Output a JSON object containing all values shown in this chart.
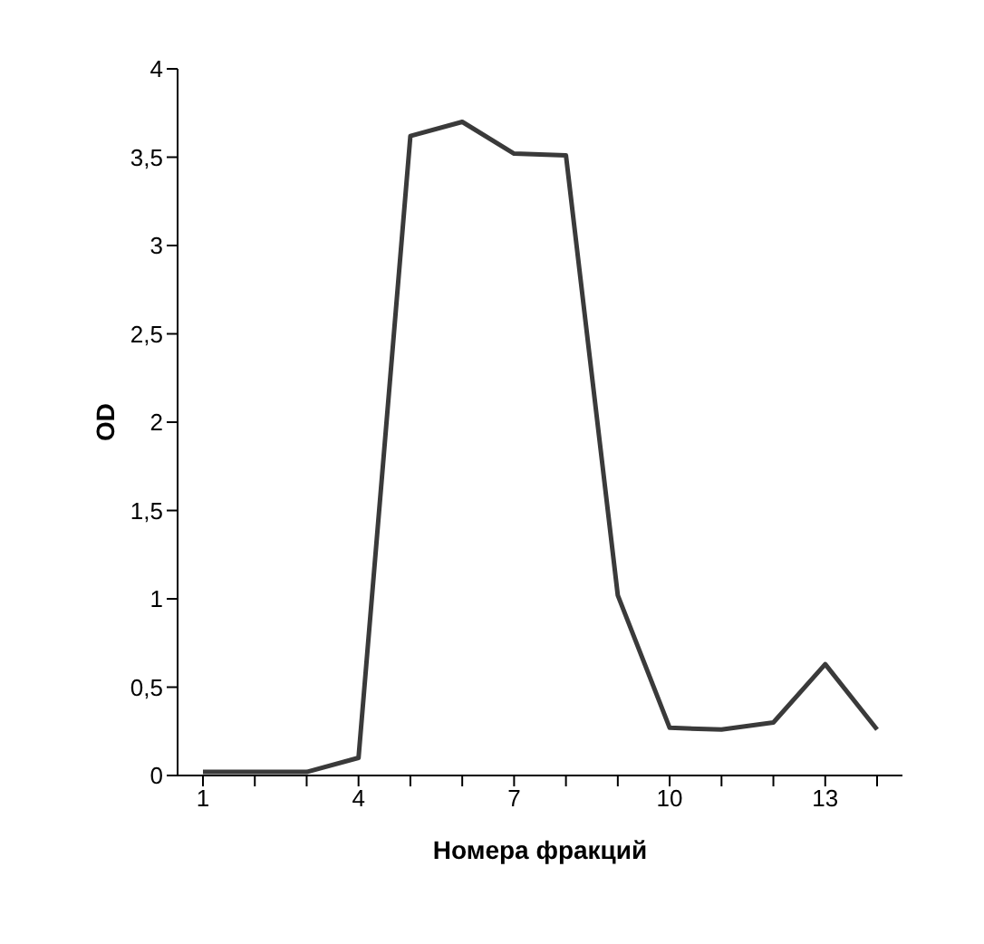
{
  "chart_data": {
    "type": "line",
    "xlabel": "Номера фракций",
    "ylabel": "OD",
    "categories": [
      "1",
      null,
      null,
      "4",
      null,
      null,
      "7",
      null,
      null,
      "10",
      null,
      null,
      "13",
      null
    ],
    "series": [
      {
        "color": "#3a3a3a",
        "values": [
          0.02,
          0.02,
          0.02,
          0.1,
          3.62,
          3.7,
          3.52,
          3.51,
          1.02,
          0.27,
          0.26,
          0.3,
          0.63,
          0.26
        ]
      }
    ],
    "ylim": [
      0,
      4
    ],
    "yticks": [
      0,
      {
        "value": 0.5,
        "label": "0,5"
      },
      1,
      {
        "value": 1.5,
        "label": "1,5"
      },
      2,
      {
        "value": 2.5,
        "label": "2,5"
      },
      3,
      {
        "value": 3.5,
        "label": "3,5"
      },
      4
    ],
    "grid": false,
    "marker": "none",
    "line_style": "solid"
  }
}
